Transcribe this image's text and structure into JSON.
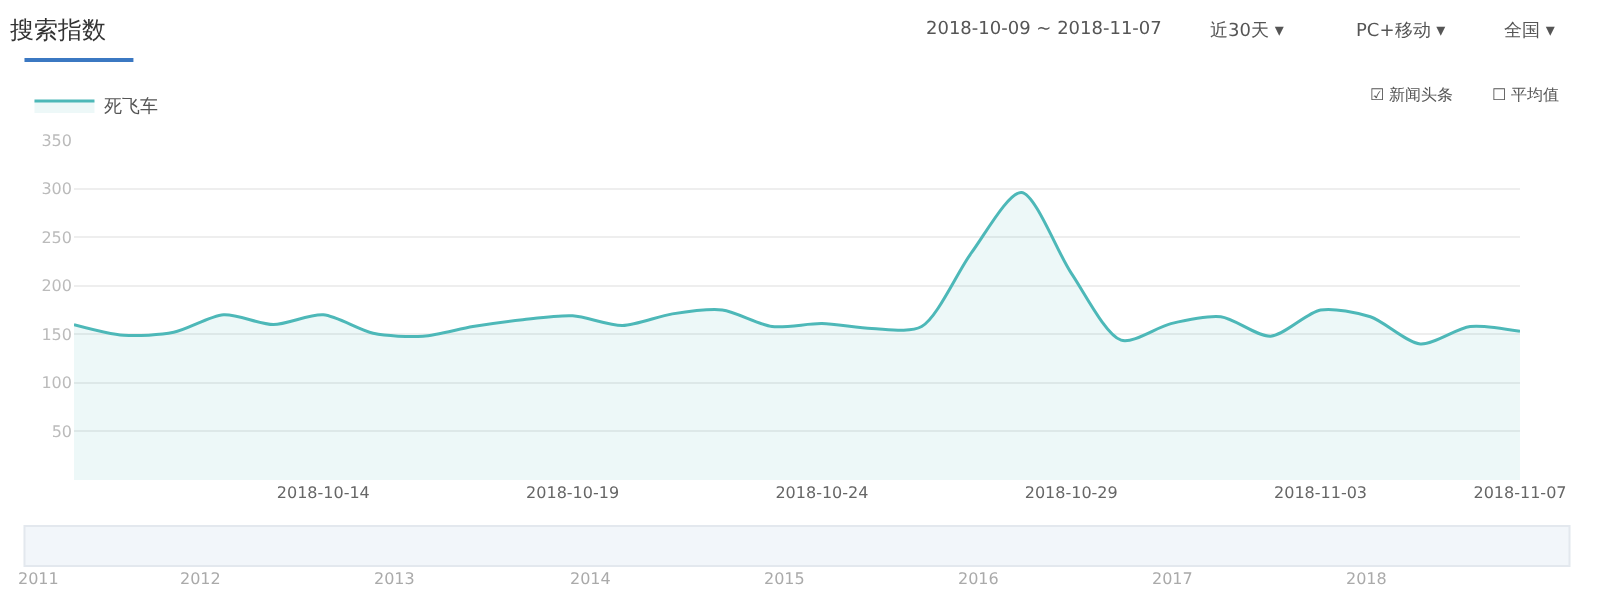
{
  "chart_data": {
    "type": "area",
    "title": "搜索指数",
    "x": [
      "2018-10-09",
      "2018-10-10",
      "2018-10-11",
      "2018-10-12",
      "2018-10-13",
      "2018-10-14",
      "2018-10-15",
      "2018-10-16",
      "2018-10-17",
      "2018-10-18",
      "2018-10-19",
      "2018-10-20",
      "2018-10-21",
      "2018-10-22",
      "2018-10-23",
      "2018-10-24",
      "2018-10-25",
      "2018-10-26",
      "2018-10-27",
      "2018-10-28",
      "2018-10-29",
      "2018-10-30",
      "2018-10-31",
      "2018-11-01",
      "2018-11-02",
      "2018-11-03",
      "2018-11-04",
      "2018-11-05",
      "2018-11-06",
      "2018-11-07"
    ],
    "series": [
      {
        "name": "死飞车",
        "color": "#4db8b8",
        "values": [
          160,
          149,
          152,
          170,
          160,
          170,
          151,
          148,
          158,
          165,
          169,
          159,
          171,
          175,
          158,
          161,
          156,
          158,
          234,
          296,
          213,
          144,
          161,
          168,
          148,
          175,
          168,
          140,
          158,
          153
        ]
      }
    ],
    "xlim": [
      "2018-10-09",
      "2018-11-07"
    ],
    "xticks": [
      "2018-10-14",
      "2018-10-19",
      "2018-10-24",
      "2018-10-29",
      "2018-11-03",
      "2018-11-07"
    ],
    "ylim": [
      0,
      350
    ],
    "yticks": [
      50,
      100,
      150,
      200,
      250,
      300,
      350
    ],
    "grid": "y",
    "legend": "top left",
    "marker": "none",
    "line_style": "solid",
    "annotations": [
      "2018-10-09 ~ 2018-11-07",
      "近30天 ▾",
      "PC+移动 ▾",
      "全国 ▾",
      "☑ 新闻头条",
      "☐ 平均值",
      "2011",
      "2012",
      "2013",
      "2014",
      "2015",
      "2016",
      "2017",
      "2018"
    ]
  }
}
